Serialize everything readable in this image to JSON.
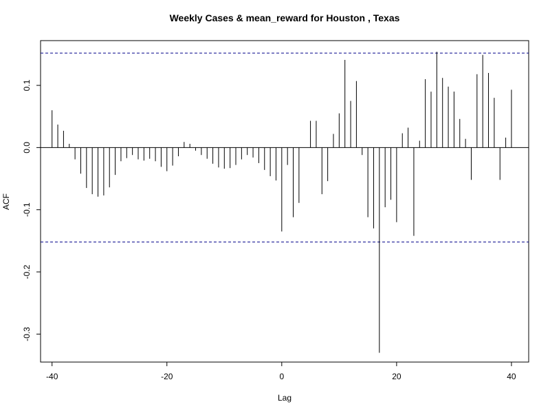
{
  "chart_data": {
    "type": "bar",
    "subtype": "acf-spike",
    "title": "Weekly Cases & mean_reward for Houston , Texas",
    "xlabel": "Lag",
    "ylabel": "ACF",
    "xlim": [
      -42,
      43
    ],
    "ylim": [
      -0.345,
      0.172
    ],
    "x_ticks": [
      -40,
      -20,
      0,
      20,
      40
    ],
    "y_ticks": [
      -0.3,
      -0.2,
      -0.1,
      0.0,
      0.1
    ],
    "x_tick_labels": [
      "-40",
      "-20",
      "0",
      "20",
      "40"
    ],
    "y_tick_labels": [
      "-0.3",
      "-0.2",
      "-0.1",
      "0.0",
      "0.1"
    ],
    "confidence_bound": 0.152,
    "grid": false,
    "colors": {
      "spike": "#000000",
      "bound": "#00008b",
      "zero_line": "#000000"
    },
    "lags": [
      -40,
      -39,
      -38,
      -37,
      -36,
      -35,
      -34,
      -33,
      -32,
      -31,
      -30,
      -29,
      -28,
      -27,
      -26,
      -25,
      -24,
      -23,
      -22,
      -21,
      -20,
      -19,
      -18,
      -17,
      -16,
      -15,
      -14,
      -13,
      -12,
      -11,
      -10,
      -9,
      -8,
      -7,
      -6,
      -5,
      -4,
      -3,
      -2,
      -1,
      0,
      1,
      2,
      3,
      4,
      5,
      6,
      7,
      8,
      9,
      10,
      11,
      12,
      13,
      14,
      15,
      16,
      17,
      18,
      19,
      20,
      21,
      22,
      23,
      24,
      25,
      26,
      27,
      28,
      29,
      30,
      31,
      32,
      33,
      34,
      35,
      36,
      37,
      38,
      39,
      40
    ],
    "values": [
      0.06,
      0.037,
      0.027,
      0.006,
      -0.019,
      -0.042,
      -0.065,
      -0.075,
      -0.079,
      -0.077,
      -0.064,
      -0.044,
      -0.022,
      -0.017,
      -0.012,
      -0.019,
      -0.021,
      -0.018,
      -0.022,
      -0.031,
      -0.038,
      -0.029,
      -0.014,
      0.009,
      0.006,
      -0.005,
      -0.012,
      -0.018,
      -0.026,
      -0.032,
      -0.034,
      -0.033,
      -0.028,
      -0.019,
      -0.012,
      -0.016,
      -0.025,
      -0.036,
      -0.046,
      -0.053,
      -0.135,
      -0.028,
      -0.112,
      -0.089,
      0.0,
      0.043,
      0.043,
      -0.075,
      -0.054,
      0.022,
      0.055,
      0.141,
      0.075,
      0.107,
      -0.012,
      -0.112,
      -0.13,
      -0.33,
      -0.096,
      -0.084,
      -0.12,
      0.023,
      0.032,
      -0.142,
      0.011,
      0.11,
      0.09,
      0.154,
      0.112,
      0.098,
      0.09,
      0.046,
      0.014,
      -0.052,
      0.118,
      0.149,
      0.12,
      0.08,
      -0.052,
      0.016,
      0.093
    ]
  }
}
